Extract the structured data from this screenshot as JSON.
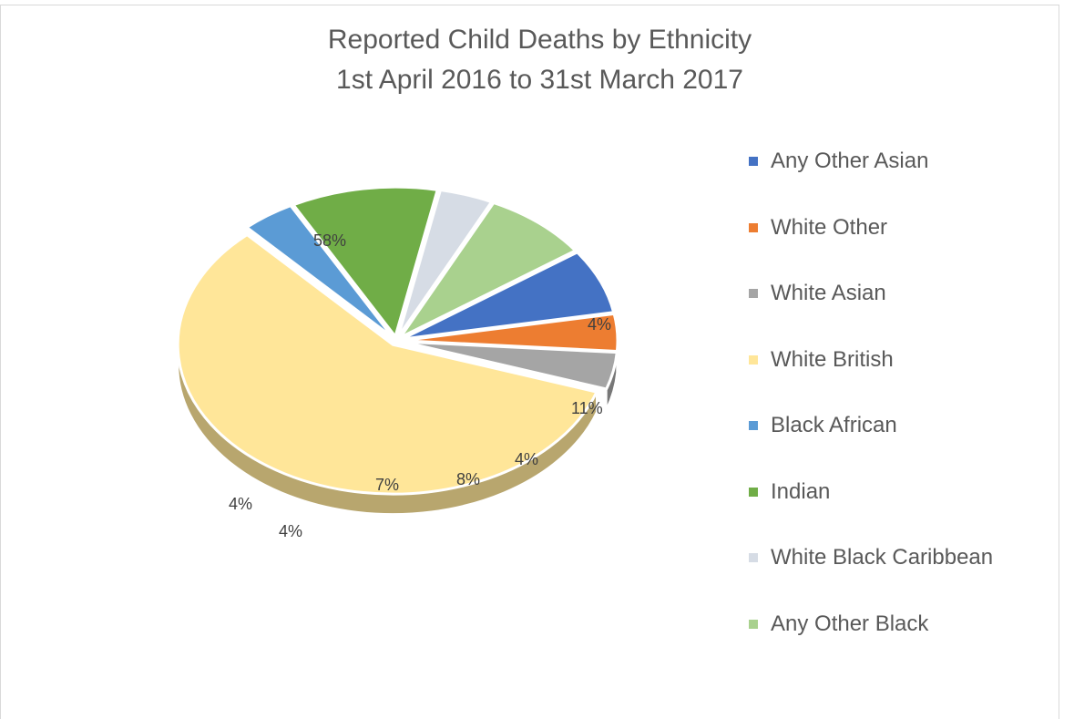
{
  "chart_data": {
    "type": "pie",
    "title_line1": "Reported Child Deaths by Ethnicity",
    "title_line2": "1st April 2016 to 31st March 2017",
    "legend_position": "right",
    "categories": [
      "Any Other Asian",
      "White Other",
      "White Asian",
      "White British",
      "Black African",
      "Indian",
      "White Black Caribbean",
      "Any Other Black"
    ],
    "values": [
      7,
      4,
      4,
      58,
      4,
      11,
      4,
      8
    ],
    "labels": [
      "7%",
      "4%",
      "4%",
      "58%",
      "4%",
      "11%",
      "4%",
      "8%"
    ],
    "colors": [
      "#4472c4",
      "#ed7d31",
      "#a5a5a5",
      "#ffe699",
      "#5b9bd5",
      "#70ad47",
      "#d6dce5",
      "#a9d18e"
    ],
    "slice_order": [
      "White British",
      "Black African",
      "Indian",
      "White Black Caribbean",
      "Any Other Black",
      "Any Other Asian",
      "White Other",
      "White Asian"
    ]
  }
}
